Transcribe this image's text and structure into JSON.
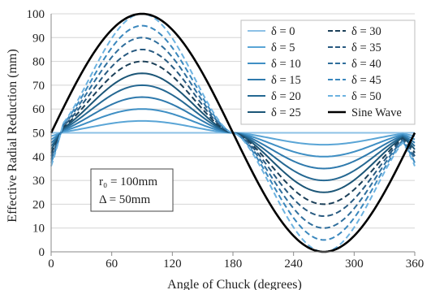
{
  "chart_data": {
    "type": "line",
    "xlabel": "Angle of Chuck (degrees)",
    "ylabel": "Effective Radial Reduction (mm)",
    "xlim": [
      0,
      360
    ],
    "ylim": [
      0,
      100
    ],
    "xticks": [
      0,
      60,
      120,
      180,
      240,
      300,
      360
    ],
    "yticks": [
      0,
      10,
      20,
      30,
      40,
      50,
      60,
      70,
      80,
      90,
      100
    ],
    "grid": "horizontal",
    "legend_position": "top-right",
    "annotation": {
      "line1": "r₀ = 100mm",
      "line2": "Δ = 50mm"
    },
    "series": [
      {
        "name": "δ = 0",
        "delta": 0,
        "peak": 50,
        "color": "#8cc1e6",
        "dash": false
      },
      {
        "name": "δ = 5",
        "delta": 5,
        "peak": 55,
        "color": "#5aa5d6",
        "dash": false
      },
      {
        "name": "δ = 10",
        "delta": 10,
        "peak": 60,
        "color": "#3f8fc4",
        "dash": false
      },
      {
        "name": "δ = 15",
        "delta": 15,
        "peak": 65,
        "color": "#2f7aad",
        "dash": false
      },
      {
        "name": "δ = 20",
        "delta": 20,
        "peak": 70,
        "color": "#256892",
        "dash": false
      },
      {
        "name": "δ = 25",
        "delta": 25,
        "peak": 75,
        "color": "#1c5677",
        "dash": false
      },
      {
        "name": "δ = 30",
        "delta": 30,
        "peak": 80,
        "color": "#1b3f58",
        "dash": true
      },
      {
        "name": "δ = 35",
        "delta": 35,
        "peak": 85,
        "color": "#285a80",
        "dash": true
      },
      {
        "name": "δ = 40",
        "delta": 40,
        "peak": 90,
        "color": "#2f6e9c",
        "dash": true
      },
      {
        "name": "δ = 45",
        "delta": 45,
        "peak": 95,
        "color": "#3a87bd",
        "dash": true
      },
      {
        "name": "δ = 50",
        "delta": 50,
        "peak": 100,
        "color": "#6cb2e0",
        "dash": true
      },
      {
        "name": "Sine Wave",
        "delta": null,
        "peak": 100,
        "color": "#000000",
        "dash": false,
        "sine": true
      }
    ]
  }
}
